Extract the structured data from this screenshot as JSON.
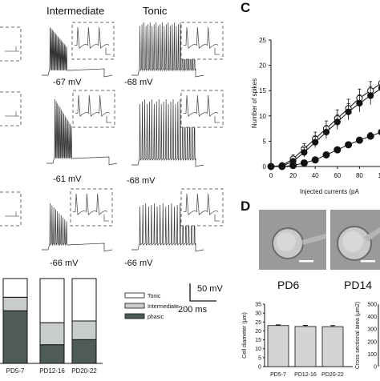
{
  "figure": {
    "panel_c_letter": "C",
    "panel_d_letter": "D",
    "headers": {
      "intermediate": "Intermediate",
      "tonic": "Tonic"
    },
    "voltages": {
      "intermediate": [
        "-67 mV",
        "-61 mV",
        "-66 mV"
      ],
      "tonic": [
        "-68 mV",
        "-68 mV",
        "-66 mV"
      ]
    },
    "scale_bar": {
      "voltage": "50 mV",
      "time": "200 ms"
    },
    "photo_labels": [
      "PD6",
      "PD14"
    ],
    "colors": {
      "tonic": "#ffffff",
      "intermediate": "#c8cdcc",
      "phasic": "#4e5b59",
      "photo": "#9a9a9a"
    }
  },
  "chart_data": [
    {
      "type": "line",
      "ylabel": "Number of spikes",
      "xlabel": "Injected currents (pA",
      "ylim": [
        0,
        25
      ],
      "xlim": [
        0,
        100
      ],
      "yticks": [
        "0",
        "5",
        "10",
        "15",
        "20",
        "25"
      ],
      "xticks": [
        "0",
        "20",
        "40",
        "60",
        "80",
        "10"
      ],
      "x": [
        0,
        10,
        20,
        30,
        40,
        50,
        60,
        70,
        80,
        90,
        100
      ],
      "series": [
        {
          "marker": "open-circle",
          "values": [
            0,
            0.2,
            1.5,
            3.5,
            5.5,
            7.5,
            9.5,
            11.5,
            13.5,
            15.0,
            16.5
          ],
          "errors": [
            0,
            0.3,
            0.8,
            1.0,
            1.3,
            1.5,
            1.7,
            1.8,
            1.8,
            1.8,
            1.8
          ]
        },
        {
          "marker": "filled-circle",
          "values": [
            0,
            0.1,
            1.0,
            2.8,
            4.8,
            6.8,
            8.8,
            10.8,
            12.5,
            14.0,
            15.5
          ],
          "errors": [
            0,
            0.2,
            0.6,
            0.9,
            1.1,
            1.3,
            1.5,
            1.6,
            1.7,
            1.8,
            1.8
          ]
        },
        {
          "marker": "filled-circle",
          "values": [
            0,
            0,
            0.2,
            0.7,
            1.3,
            2.3,
            3.3,
            4.3,
            5.2,
            6.0,
            6.8
          ],
          "errors": [
            0,
            0,
            0.2,
            0.3,
            0.3,
            0.4,
            0.5,
            0.5,
            0.6,
            0.7,
            0.8
          ]
        }
      ]
    },
    {
      "type": "bar",
      "stacked": true,
      "categories": [
        "PD5-7",
        "PD12-16",
        "PD20-22"
      ],
      "series": [
        {
          "name": "phasic",
          "values": [
            0.62,
            0.22,
            0.28
          ]
        },
        {
          "name": "Intermediate",
          "values": [
            0.16,
            0.26,
            0.22
          ]
        },
        {
          "name": "Tonic",
          "values": [
            0.22,
            0.52,
            0.5
          ]
        }
      ],
      "legend": [
        "Tonic",
        "Intermediate",
        "phasic"
      ],
      "legend_position": "right"
    },
    {
      "type": "bar",
      "ylabel": "Cell diameter (μm)",
      "categories": [
        "PD5-7",
        "PD12-16",
        "PD20-22"
      ],
      "values": [
        23.0,
        22.5,
        22.4
      ],
      "errors": [
        0.4,
        0.6,
        0.6
      ],
      "ylim": [
        0,
        35
      ],
      "yticks": [
        "0",
        "5",
        "10",
        "15",
        "20",
        "25",
        "30",
        "35"
      ]
    },
    {
      "type": "bar",
      "ylabel": "Cross sectional area (μm2)",
      "yticks": [
        "0",
        "100",
        "200",
        "300",
        "400",
        "500"
      ],
      "ylim": [
        0,
        500
      ]
    }
  ]
}
